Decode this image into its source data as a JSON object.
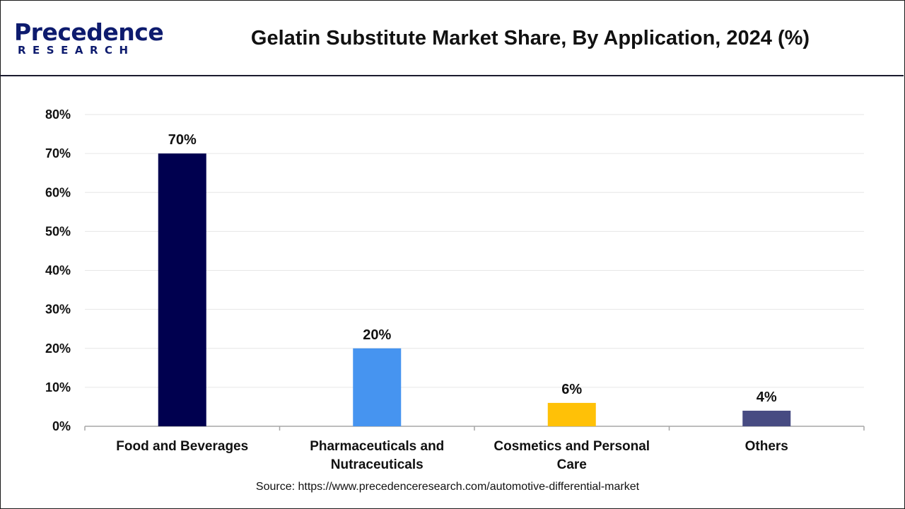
{
  "header": {
    "logo_name": "Precedence",
    "logo_sub": "RESEARCH",
    "title": "Gelatin Substitute Market Share, By Application, 2024 (%)"
  },
  "chart_data": {
    "type": "bar",
    "title": "Gelatin Substitute Market Share, By Application, 2024 (%)",
    "categories": [
      [
        "Food and Beverages"
      ],
      [
        "Pharmaceuticals and",
        "Nutraceuticals"
      ],
      [
        "Cosmetics and Personal",
        "Care"
      ],
      [
        "Others"
      ]
    ],
    "values": [
      70,
      20,
      6,
      4
    ],
    "data_labels": [
      "70%",
      "20%",
      "6%",
      "4%"
    ],
    "bar_colors": [
      "#00004f",
      "#4694f0",
      "#ffc107",
      "#474b82"
    ],
    "ylim": [
      0,
      80
    ],
    "yticks": [
      0,
      10,
      20,
      30,
      40,
      50,
      60,
      70,
      80
    ],
    "ytick_labels": [
      "0%",
      "10%",
      "20%",
      "30%",
      "40%",
      "50%",
      "60%",
      "70%",
      "80%"
    ],
    "xlabel": "",
    "ylabel": "",
    "grid": true,
    "legend": "none"
  },
  "footer": {
    "source": "Source: https://www.precedenceresearch.com/automotive-differential-market"
  }
}
